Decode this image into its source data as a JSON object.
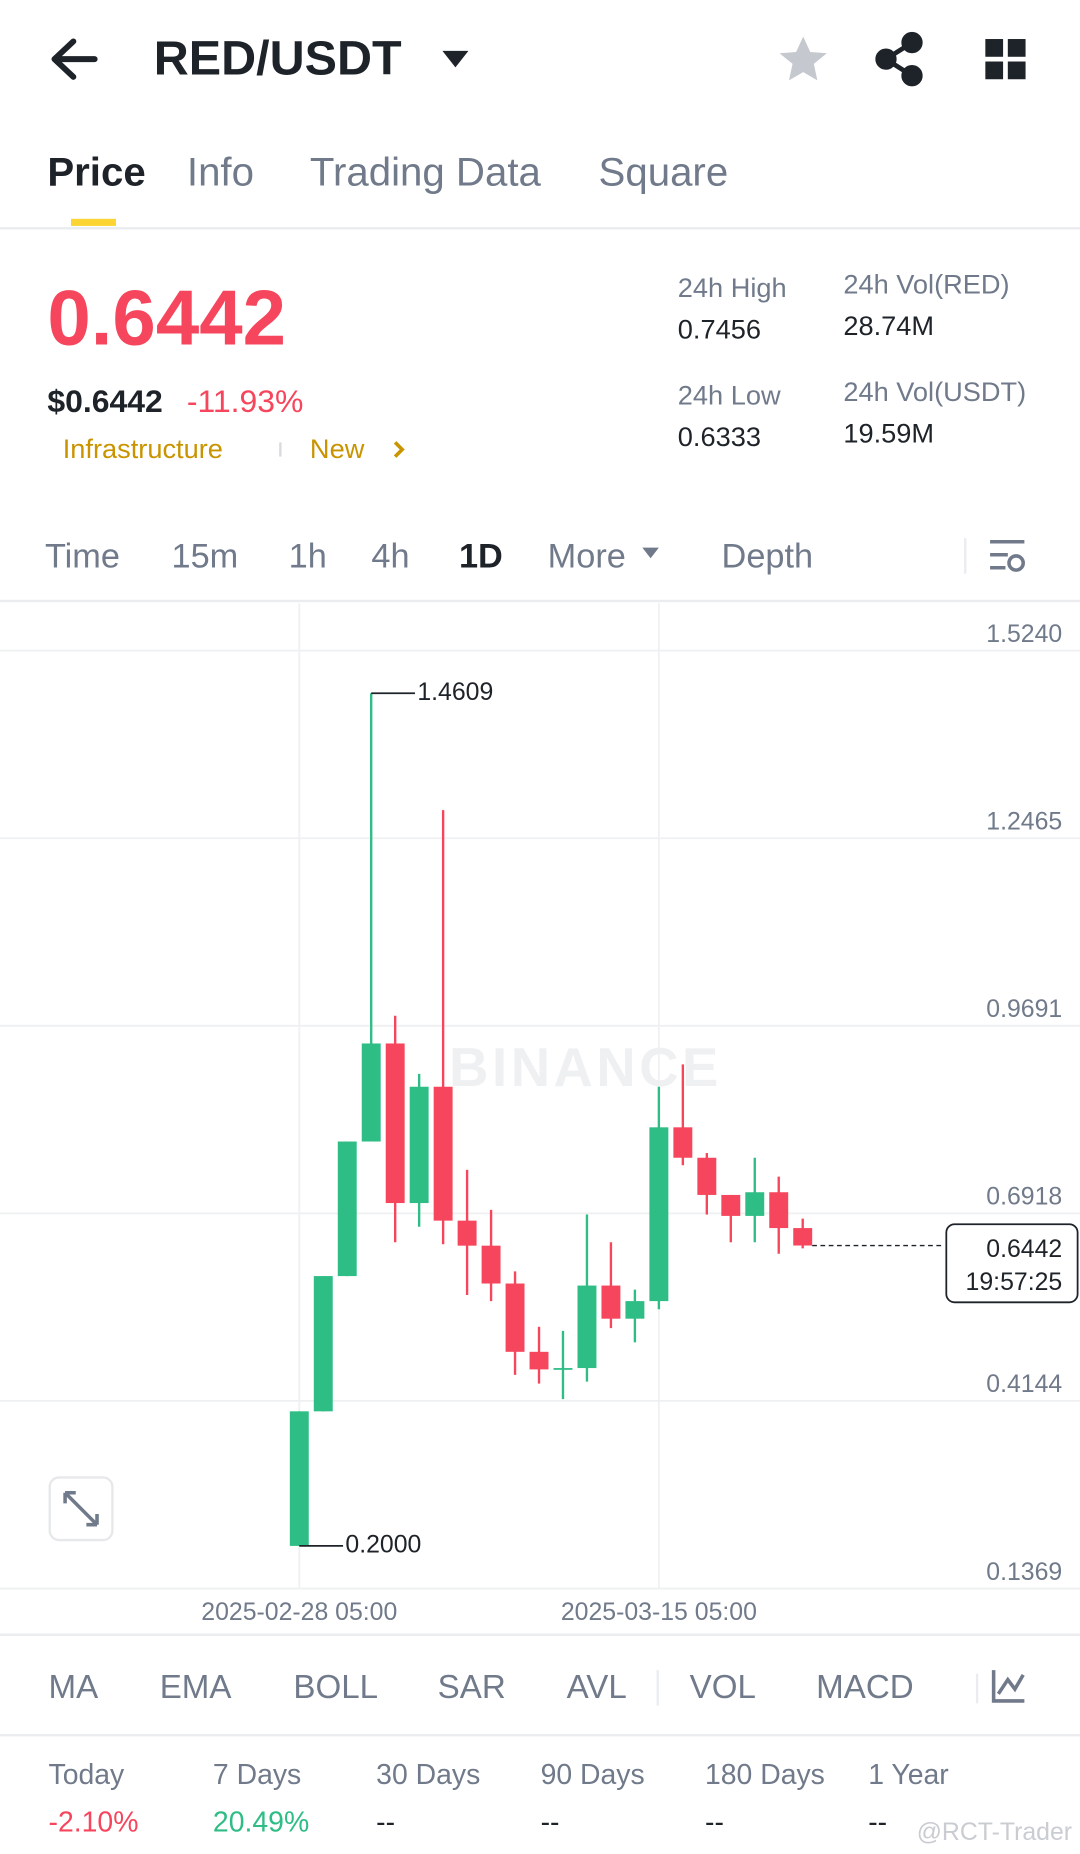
{
  "header": {
    "pair": "RED/USDT"
  },
  "tabs": [
    "Price",
    "Info",
    "Trading Data",
    "Square"
  ],
  "price": {
    "last": "0.6442",
    "usd": "$0.6442",
    "change": "-11.93%",
    "tags": [
      "Infrastructure",
      "New"
    ]
  },
  "stats": [
    {
      "label": "24h High",
      "value": "0.7456"
    },
    {
      "label": "24h Vol(RED)",
      "value": "28.74M"
    },
    {
      "label": "24h Low",
      "value": "0.6333"
    },
    {
      "label": "24h Vol(USDT)",
      "value": "19.59M"
    }
  ],
  "intervals": [
    "Time",
    "15m",
    "1h",
    "4h",
    "1D",
    "More",
    "Depth"
  ],
  "chart_data": {
    "type": "candlestick",
    "watermark": "BINANCE",
    "categories": [
      "2025-02-28 05:00",
      null,
      null,
      null,
      null,
      null,
      null,
      null,
      null,
      null,
      null,
      null,
      null,
      null,
      null,
      "2025-03-15 05:00",
      null,
      null,
      null,
      null,
      null,
      null
    ],
    "open": [
      0.2,
      0.399,
      0.599,
      0.798,
      0.943,
      0.707,
      0.879,
      0.681,
      0.644,
      0.588,
      0.487,
      0.461,
      0.463,
      0.585,
      0.536,
      0.562,
      0.819,
      0.774,
      0.719,
      0.688,
      0.723,
      0.67
    ],
    "high": [
      0.399,
      0.599,
      0.798,
      1.4609,
      0.984,
      0.898,
      1.288,
      0.756,
      0.697,
      0.606,
      0.524,
      0.518,
      0.69,
      0.649,
      0.579,
      0.879,
      0.912,
      0.781,
      0.719,
      0.774,
      0.746,
      0.684
    ],
    "low": [
      0.2,
      0.399,
      0.599,
      0.798,
      0.649,
      0.672,
      0.646,
      0.571,
      0.562,
      0.453,
      0.44,
      0.417,
      0.443,
      0.522,
      0.501,
      0.55,
      0.763,
      0.69,
      0.649,
      0.649,
      0.632,
      0.64
    ],
    "close": [
      0.399,
      0.599,
      0.798,
      0.943,
      0.707,
      0.879,
      0.681,
      0.644,
      0.588,
      0.487,
      0.461,
      0.463,
      0.585,
      0.536,
      0.562,
      0.819,
      0.774,
      0.719,
      0.688,
      0.723,
      0.67,
      0.6442
    ],
    "up_color": "#2ebd85",
    "down_color": "#f6465d",
    "ylim": [
      0.1369,
      1.594
    ],
    "yticks": [
      {
        "value": 1.524,
        "label": "1.5240"
      },
      1.2465,
      0.9691,
      0.6918,
      0.4144,
      0.1369
    ],
    "grid": true,
    "annotations": [
      {
        "value": 1.4609,
        "label": "1.4609"
      },
      {
        "value": 0.2,
        "label": "0.2000"
      }
    ],
    "last_price": {
      "value": 0.6442,
      "label": "0.6442"
    },
    "countdown": "19:57:25"
  },
  "indicators": [
    "MA",
    "EMA",
    "BOLL",
    "SAR",
    "AVL",
    "VOL",
    "MACD"
  ],
  "performance": [
    {
      "period": "Today",
      "change": "-2.10%"
    },
    {
      "period": "7 Days",
      "change": "20.49%"
    },
    {
      "period": "30 Days",
      "change": "--"
    },
    {
      "period": "90 Days",
      "change": "--"
    },
    {
      "period": "180 Days",
      "change": "--"
    },
    {
      "period": "1 Year",
      "change": "--"
    }
  ],
  "watermark": "@RCT-Trader"
}
